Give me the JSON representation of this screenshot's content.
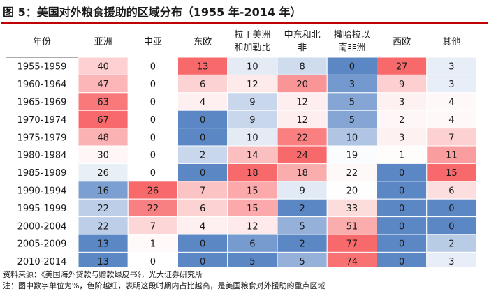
{
  "title": "图 5：美国对外粮食援助的区域分布（1955 年-2014 年）",
  "chart_data": {
    "type": "table",
    "title": "图 5：美国对外粮食援助的区域分布（1955 年-2014 年）",
    "row_header_label": "年份",
    "columns": [
      {
        "label_lines": [
          "亚洲"
        ]
      },
      {
        "label_lines": [
          "中亚"
        ]
      },
      {
        "label_lines": [
          "东欧"
        ]
      },
      {
        "label_lines": [
          "拉丁美洲",
          "和加勒比"
        ]
      },
      {
        "label_lines": [
          "中东和北",
          "非"
        ]
      },
      {
        "label_lines": [
          "撒哈拉以",
          "南非洲"
        ]
      },
      {
        "label_lines": [
          "西欧"
        ]
      },
      {
        "label_lines": [
          "其他"
        ]
      }
    ],
    "rows": [
      {
        "period": "1955-1959",
        "values": [
          40,
          0,
          13,
          10,
          8,
          0,
          27,
          3
        ]
      },
      {
        "period": "1960-1964",
        "values": [
          47,
          0,
          6,
          12,
          20,
          3,
          9,
          3
        ]
      },
      {
        "period": "1965-1969",
        "values": [
          63,
          0,
          4,
          9,
          12,
          5,
          3,
          4
        ]
      },
      {
        "period": "1970-1974",
        "values": [
          67,
          0,
          0,
          9,
          12,
          5,
          2,
          4
        ]
      },
      {
        "period": "1975-1979",
        "values": [
          48,
          0,
          0,
          10,
          22,
          10,
          3,
          7
        ]
      },
      {
        "period": "1980-1984",
        "values": [
          30,
          0,
          2,
          14,
          24,
          19,
          1,
          11
        ]
      },
      {
        "period": "1985-1989",
        "values": [
          26,
          0,
          0,
          18,
          18,
          22,
          0,
          15
        ]
      },
      {
        "period": "1990-1994",
        "values": [
          16,
          26,
          7,
          15,
          9,
          20,
          0,
          6
        ]
      },
      {
        "period": "1995-1999",
        "values": [
          22,
          22,
          6,
          15,
          2,
          33,
          0,
          0
        ]
      },
      {
        "period": "2000-2004",
        "values": [
          22,
          7,
          4,
          12,
          5,
          51,
          0,
          0
        ]
      },
      {
        "period": "2005-2009",
        "values": [
          13,
          1,
          0,
          6,
          2,
          77,
          0,
          2
        ]
      },
      {
        "period": "2010-2014",
        "values": [
          13,
          0,
          0,
          5,
          5,
          74,
          0,
          3
        ]
      }
    ],
    "unit": "%",
    "color_scale": {
      "low": "#5b87c5",
      "mid": "#ffffff",
      "high": "#f8696b"
    }
  },
  "notes": {
    "source": "资料来源：《美国海外贷款与赠款绿皮书》，光大证券研究所",
    "footnote": "注：图中数字单位为%，色阶越红，表明这段时期内占比越高，是美国粮食对外援助的重点区域"
  }
}
